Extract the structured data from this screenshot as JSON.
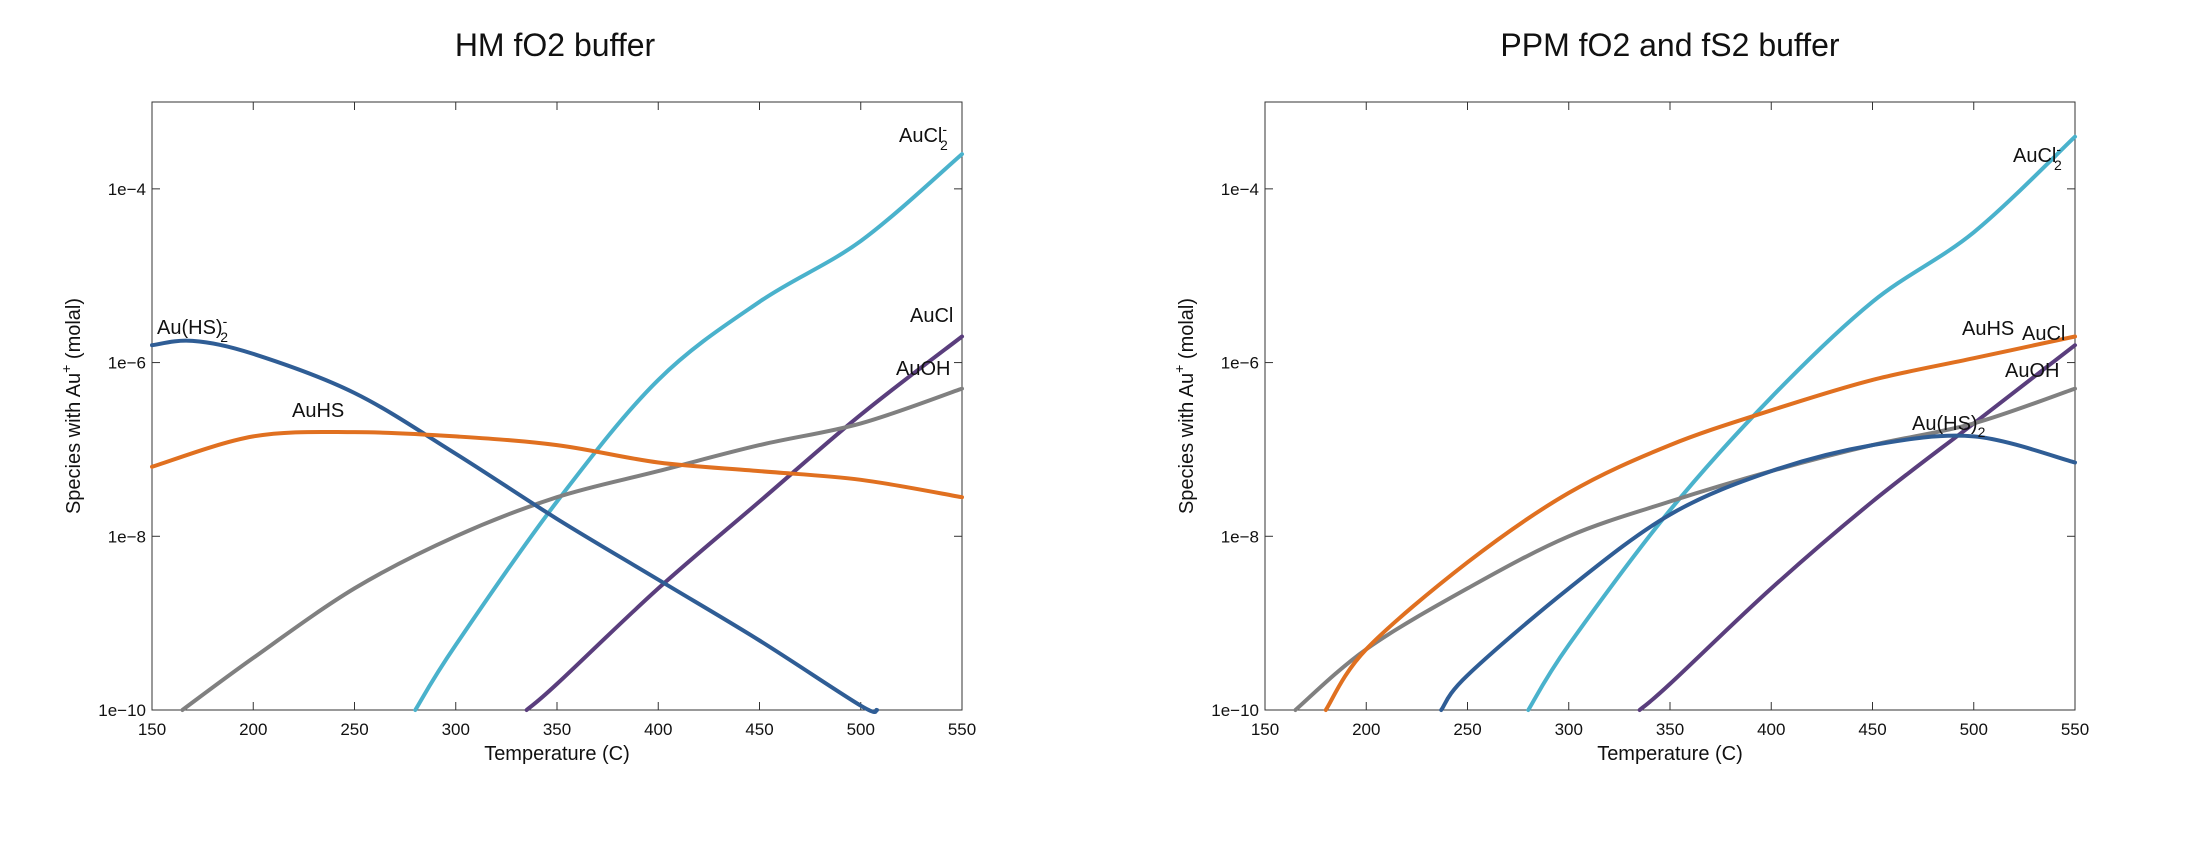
{
  "chart_data": [
    {
      "type": "line",
      "title": "HM fO2 buffer",
      "xlabel": "Temperature (C)",
      "ylabel": "Species with Au+ (molal)",
      "xlim": [
        150,
        550
      ],
      "ylim_log10": [
        -10,
        -3
      ],
      "yscale": "log",
      "grid": false,
      "x_ticks": [
        "150",
        "200",
        "250",
        "300",
        "350",
        "400",
        "450",
        "500",
        "550"
      ],
      "y_ticks": [
        "1e−10",
        "1e−8",
        "1e−6",
        "1e−4"
      ],
      "series": [
        {
          "name": "AuCl2-",
          "color": "#4ab2cc",
          "x": [
            280,
            300,
            350,
            400,
            450,
            500,
            550
          ],
          "y_log10": [
            -10.0,
            -9.25,
            -7.6,
            -6.2,
            -5.3,
            -4.6,
            -3.6
          ]
        },
        {
          "name": "AuCl",
          "color": "#5a3e7d",
          "x": [
            335,
            350,
            400,
            450,
            500,
            550
          ],
          "y_log10": [
            -10.0,
            -9.7,
            -8.6,
            -7.6,
            -6.6,
            -5.7
          ]
        },
        {
          "name": "AuOH",
          "color": "#808080",
          "x": [
            165,
            200,
            250,
            300,
            350,
            400,
            450,
            500,
            550
          ],
          "y_log10": [
            -10.0,
            -9.4,
            -8.6,
            -8.0,
            -7.55,
            -7.25,
            -6.95,
            -6.7,
            -6.3
          ]
        },
        {
          "name": "Au(HS)2-",
          "color": "#2f5d95",
          "x": [
            150,
            170,
            200,
            250,
            300,
            350,
            400,
            450,
            500,
            508
          ],
          "y_log10": [
            -5.8,
            -5.75,
            -5.9,
            -6.35,
            -7.05,
            -7.8,
            -8.5,
            -9.2,
            -9.95,
            -10.0
          ]
        },
        {
          "name": "AuHS",
          "color": "#e07020",
          "x": [
            150,
            200,
            250,
            300,
            350,
            400,
            450,
            500,
            550
          ],
          "y_log10": [
            -7.2,
            -6.85,
            -6.8,
            -6.85,
            -6.95,
            -7.15,
            -7.25,
            -7.35,
            -7.55
          ]
        }
      ],
      "labels": {
        "aucl2": {
          "base": "AuCl",
          "sup": "-",
          "sub": "2"
        },
        "aucl": "AuCl",
        "auoh": "AuOH",
        "auhs2": {
          "base": "Au(HS)",
          "sup": "-",
          "sub": "2"
        },
        "auhs": "AuHS"
      }
    },
    {
      "type": "line",
      "title": "PPM fO2 and fS2 buffer",
      "xlabel": "Temperature (C)",
      "ylabel": "Species with Au+ (molal)",
      "xlim": [
        150,
        550
      ],
      "ylim_log10": [
        -10,
        -3
      ],
      "yscale": "log",
      "grid": false,
      "x_ticks": [
        "150",
        "200",
        "250",
        "300",
        "350",
        "400",
        "450",
        "500",
        "550"
      ],
      "y_ticks": [
        "1e−10",
        "1e−8",
        "1e−6",
        "1e−4"
      ],
      "series": [
        {
          "name": "AuCl2-",
          "color": "#4ab2cc",
          "x": [
            280,
            300,
            350,
            400,
            450,
            500,
            550
          ],
          "y_log10": [
            -10.0,
            -9.25,
            -7.7,
            -6.4,
            -5.3,
            -4.5,
            -3.4
          ]
        },
        {
          "name": "AuCl",
          "color": "#5a3e7d",
          "x": [
            335,
            350,
            400,
            450,
            500,
            550
          ],
          "y_log10": [
            -10.0,
            -9.7,
            -8.6,
            -7.6,
            -6.7,
            -5.8
          ]
        },
        {
          "name": "AuOH",
          "color": "#808080",
          "x": [
            165,
            200,
            250,
            300,
            350,
            400,
            450,
            500,
            550
          ],
          "y_log10": [
            -10.0,
            -9.3,
            -8.6,
            -8.0,
            -7.6,
            -7.25,
            -6.95,
            -6.7,
            -6.3
          ]
        },
        {
          "name": "Au(HS)2",
          "color": "#2f5d95",
          "x": [
            237,
            250,
            300,
            350,
            400,
            450,
            500,
            550
          ],
          "y_log10": [
            -10.0,
            -9.6,
            -8.6,
            -7.75,
            -7.25,
            -6.95,
            -6.85,
            -7.15
          ]
        },
        {
          "name": "AuHS",
          "color": "#e07020",
          "x": [
            180,
            200,
            250,
            300,
            350,
            400,
            450,
            500,
            550
          ],
          "y_log10": [
            -10.0,
            -9.3,
            -8.3,
            -7.5,
            -6.95,
            -6.55,
            -6.2,
            -5.95,
            -5.7
          ]
        }
      ],
      "labels": {
        "aucl2": {
          "base": "AuCl",
          "sup": "-",
          "sub": "2"
        },
        "aucl": "AuCl",
        "auoh": "AuOH",
        "auhs2": {
          "base": "Au(HS)",
          "sub": "2"
        },
        "auhs": "AuHS"
      }
    }
  ],
  "ylabel_parts": {
    "pre": "Species with Au",
    "sup": "+",
    "post": " (molal)"
  }
}
